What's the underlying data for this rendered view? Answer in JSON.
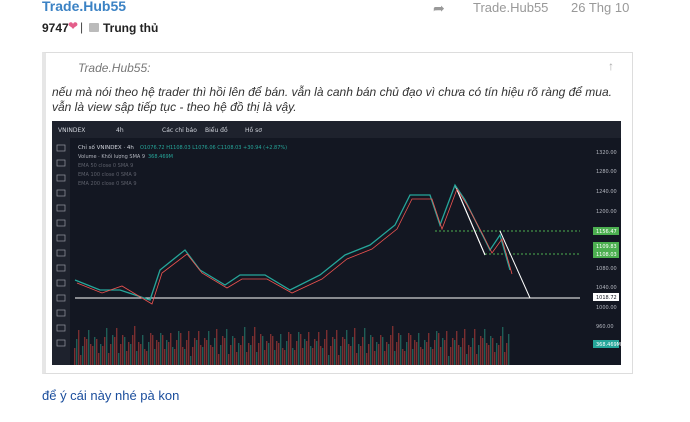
{
  "post": {
    "author": "Trade.Hub55",
    "reply_to": "Trade.Hub55",
    "date": "26 Thg 10",
    "score": 9747,
    "badge": "Trung thủ"
  },
  "quote": {
    "author": "Trade.Hub55:",
    "lines": [
      "nếu mà nói theo hệ trader thì hồi lên để bán. vẫn là canh bán chủ đạo vì chưa có tín hiệu rõ ràng để mua.",
      "vẫn là view sập tiếp tục - theo hệ đồ thị là vậy."
    ]
  },
  "chart_image": {
    "symbol": "VNINDEX",
    "interval": "4h",
    "toolbar": [
      "Các chỉ báo",
      "Biểu đồ",
      "Hồ sơ"
    ],
    "legend": [
      "Chỉ số VNINDEX · 4h",
      "O1076.72 H1108.03 L1076.06 C1108.03 +30.94 (+2.87%)",
      "Volume · Khối lượng SMA 9",
      "368.469M",
      "EMA 50 close 0 SMA 9",
      "EMA 100 close 0 SMA 9",
      "EMA 200 close 0 SMA 9"
    ],
    "price_labels": [
      "1320.00",
      "1280.00",
      "1240.00",
      "1200.00",
      "1156.47",
      "1109.83",
      "1108.03",
      "1080.00",
      "1040.00",
      "1018.72",
      "1000.00",
      "960.00",
      "368.469M"
    ]
  },
  "reply": "để ý cái này nhé pà kon"
}
